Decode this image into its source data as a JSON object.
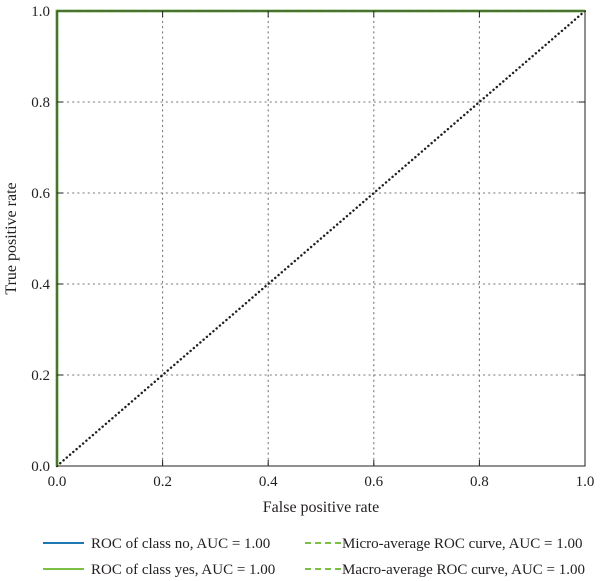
{
  "chart_data": {
    "type": "line",
    "title": "",
    "xlabel": "False positive rate",
    "ylabel": "True positive rate",
    "xlim": [
      0.0,
      1.0
    ],
    "ylim": [
      0.0,
      1.0
    ],
    "xticks": [
      "0.0",
      "0.2",
      "0.4",
      "0.6",
      "0.8",
      "1.0"
    ],
    "yticks": [
      "0.0",
      "0.2",
      "0.4",
      "0.6",
      "0.8",
      "1.0"
    ],
    "grid": true,
    "legend_position": "bottom",
    "series": [
      {
        "name": "ROC of class no, AUC = 1.00",
        "color": "#1f77b4",
        "style": "solid",
        "x": [
          0.0,
          0.0,
          1.0
        ],
        "y": [
          0.0,
          1.0,
          1.0
        ]
      },
      {
        "name": "ROC of class yes, AUC = 1.00",
        "color": "#7ac143",
        "style": "solid",
        "x": [
          0.0,
          0.0,
          1.0
        ],
        "y": [
          0.0,
          1.0,
          1.0
        ]
      },
      {
        "name": "Micro-average ROC curve, AUC = 1.00",
        "color": "#7ac143",
        "style": "dashed",
        "x": [
          0.0,
          0.0,
          1.0
        ],
        "y": [
          0.0,
          1.0,
          1.0
        ]
      },
      {
        "name": "Macro-average ROC curve, AUC = 1.00",
        "color": "#7ac143",
        "style": "dashed",
        "x": [
          0.0,
          0.0,
          1.0
        ],
        "y": [
          0.0,
          1.0,
          1.0
        ]
      }
    ],
    "reference_line": {
      "color": "#231f20",
      "style": "dotted",
      "x": [
        0.0,
        1.0
      ],
      "y": [
        0.0,
        1.0
      ]
    }
  }
}
